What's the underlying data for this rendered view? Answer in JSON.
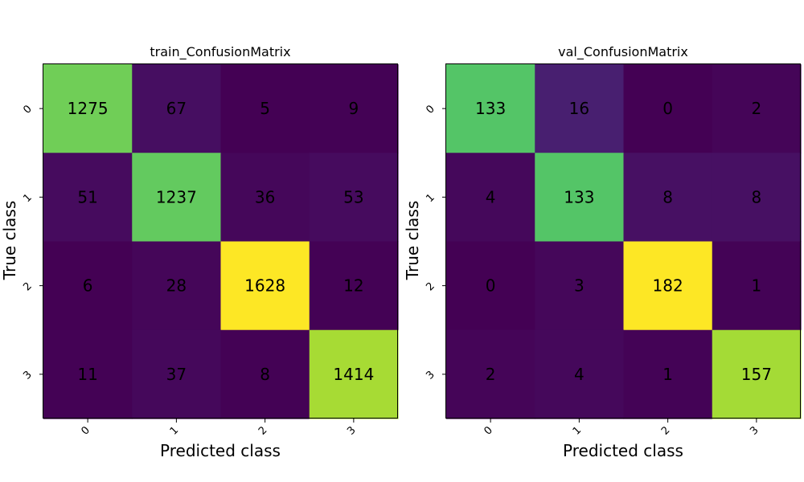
{
  "chart_data": [
    {
      "type": "heatmap",
      "title": "train_ConfusionMatrix",
      "xlabel": "Predicted class",
      "ylabel": "True class",
      "x_ticks": [
        "0",
        "1",
        "2",
        "3"
      ],
      "y_ticks": [
        "0",
        "1",
        "2",
        "3"
      ],
      "colormap": "viridis",
      "values": [
        [
          1275,
          67,
          5,
          9
        ],
        [
          51,
          1237,
          36,
          53
        ],
        [
          6,
          28,
          1628,
          12
        ],
        [
          11,
          37,
          8,
          1414
        ]
      ]
    },
    {
      "type": "heatmap",
      "title": "val_ConfusionMatrix",
      "xlabel": "Predicted class",
      "ylabel": "True class",
      "x_ticks": [
        "0",
        "1",
        "2",
        "3"
      ],
      "y_ticks": [
        "0",
        "1",
        "2",
        "3"
      ],
      "colormap": "viridis",
      "values": [
        [
          133,
          16,
          0,
          2
        ],
        [
          4,
          133,
          8,
          8
        ],
        [
          0,
          3,
          182,
          1
        ],
        [
          2,
          4,
          1,
          157
        ]
      ]
    }
  ]
}
